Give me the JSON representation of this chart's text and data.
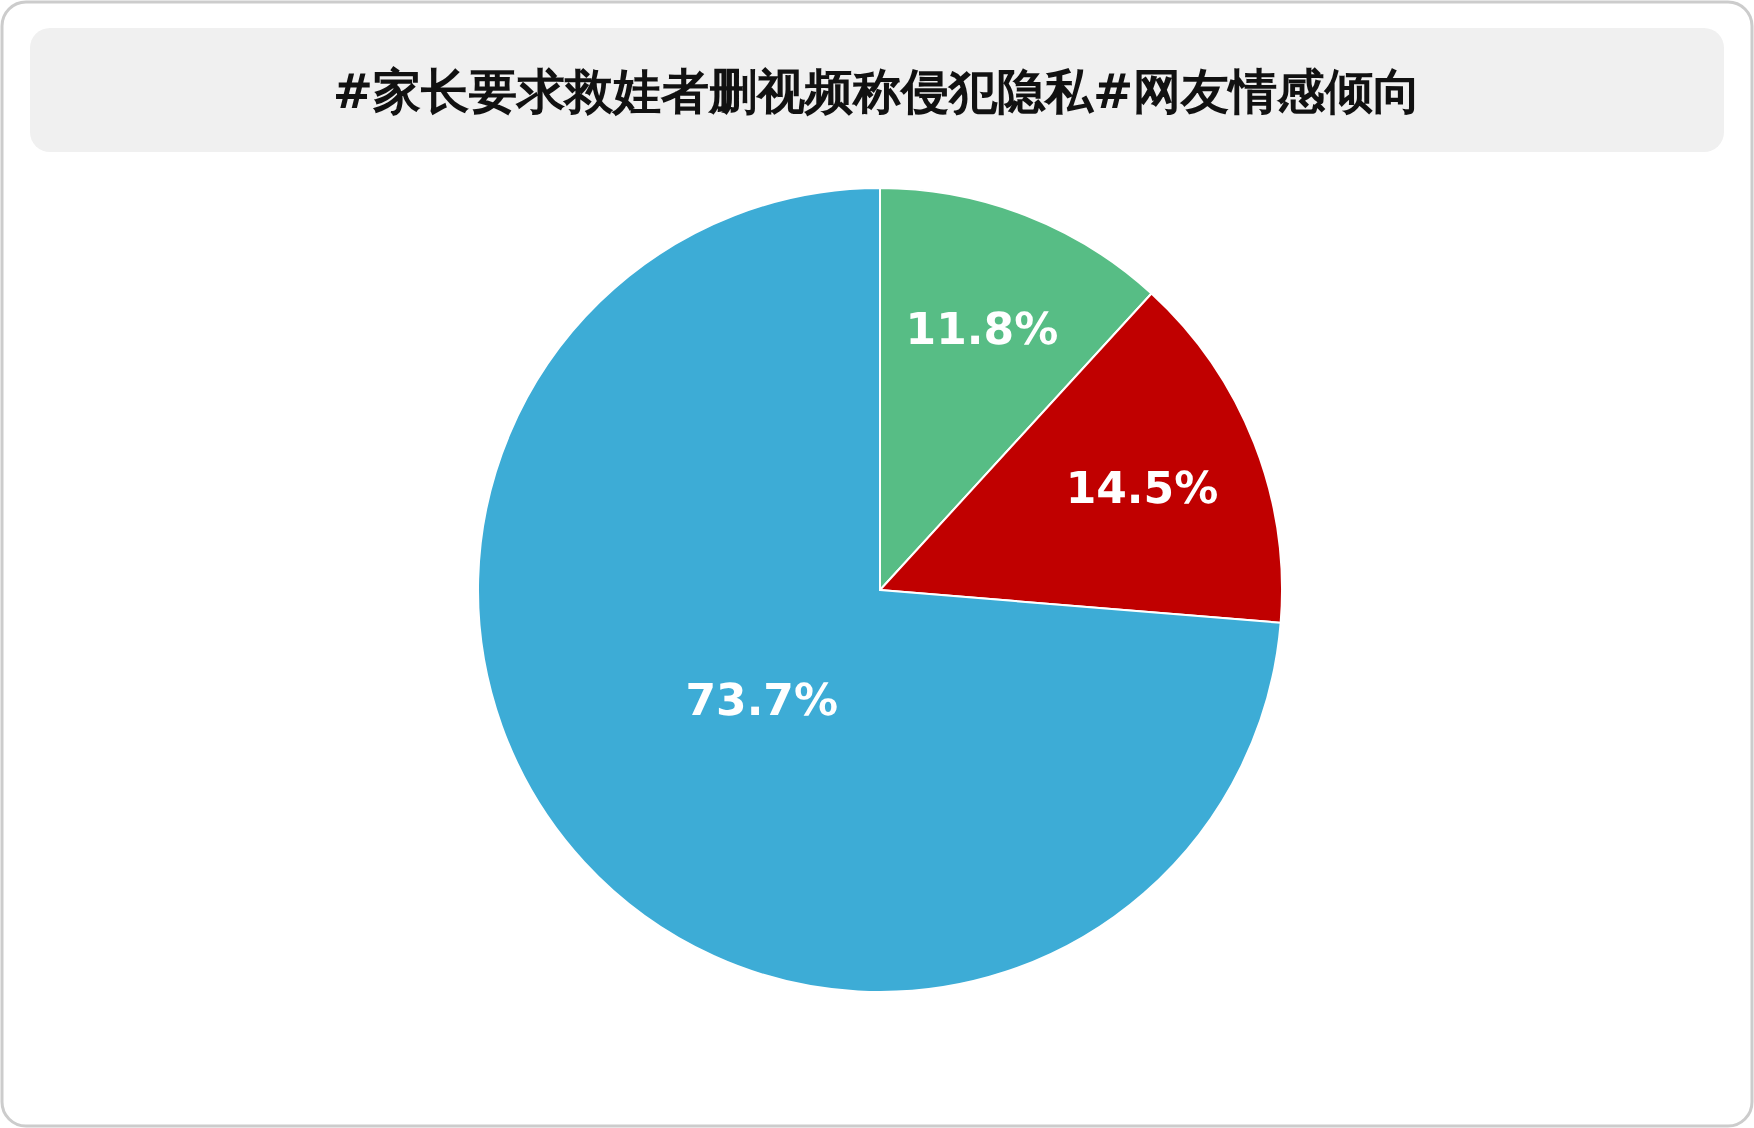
{
  "chart_data": {
    "type": "pie",
    "title": "#家长要求救娃者删视频称侵犯隐私#网友情感倾向",
    "categories": [
      null,
      null,
      null
    ],
    "values": [
      11.8,
      14.5,
      73.7
    ],
    "colors": [
      "#57bd85",
      "#c00000",
      "#3dacd6"
    ],
    "value_labels": [
      "11.8%",
      "14.5%",
      "73.7%"
    ]
  }
}
